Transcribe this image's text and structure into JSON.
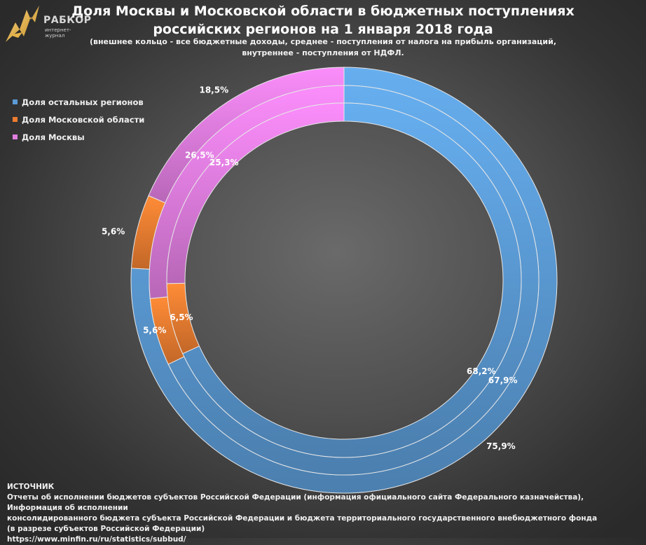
{
  "logo": {
    "name": "РАБКОР",
    "sub": "интернет-журнал"
  },
  "title_line1": "Доля Москвы и Московской области в бюджетных поступлениях",
  "title_line2": "российских регионов на 1 января 2018 года",
  "subtitle_line1": "(внешнее кольцо - все бюджетные доходы, среднее - поступления от налога на прибыль организаций,",
  "subtitle_line2": "внутреннее - поступления от НДФЛ.",
  "legend": [
    {
      "label": "Доля остальных регионов",
      "color": "#5b9bd5"
    },
    {
      "label": "Доля Московской области",
      "color": "#ed7d31"
    },
    {
      "label": "Доля Москвы",
      "color": "#e07ee0"
    }
  ],
  "chart_data": {
    "type": "doughnut",
    "categories": [
      "Доля остальных регионов",
      "Доля Московской области",
      "Доля Москвы"
    ],
    "colors": [
      "#5b9bd5",
      "#ed7d31",
      "#e07ee0"
    ],
    "series": [
      {
        "values": [
          75.9,
          5.6,
          18.5
        ],
        "labels": [
          "75,9%",
          "5,6%",
          "18,5%"
        ]
      },
      {
        "values": [
          67.9,
          5.6,
          26.5
        ],
        "labels": [
          "67,9%",
          "5,6%",
          "26,5%"
        ]
      },
      {
        "values": [
          68.2,
          6.5,
          25.3
        ],
        "labels": [
          "68,2%",
          "6,5%",
          "25,3%"
        ]
      }
    ]
  },
  "source": {
    "heading": "ИСТОЧНИК",
    "line1": "Отчеты об исполнении бюджетов субъектов Российской Федерации (информация официального сайта Федерального казначейства), Информация об исполнении",
    "line2": "консолидированного бюджета субъекта Российской Федерации и бюджета территориального государственного внебюджетного фонда",
    "line3": "(в разрезе субъектов Российской Федерации)",
    "url": "https://www.minfin.ru/ru/statistics/subbud/"
  }
}
